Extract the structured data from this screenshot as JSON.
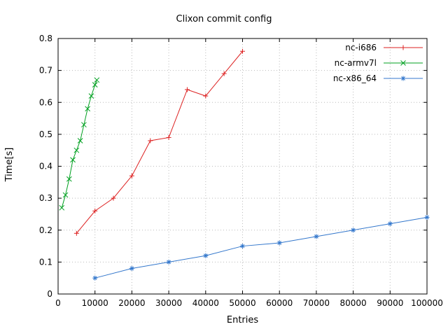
{
  "chart_data": {
    "type": "line",
    "title": "Clixon commit config",
    "xlabel": "Entries",
    "ylabel": "Time[s]",
    "xlim": [
      0,
      100000
    ],
    "ylim": [
      0,
      0.8
    ],
    "grid": true,
    "legend_position": "top-right-inside",
    "x_ticks": [
      0,
      10000,
      20000,
      30000,
      40000,
      50000,
      60000,
      70000,
      80000,
      90000,
      100000
    ],
    "x_tick_labels": [
      "0",
      "10000",
      "20000",
      "30000",
      "40000",
      "50000",
      "60000",
      "70000",
      "80000",
      "90000",
      "100000"
    ],
    "y_ticks": [
      0,
      0.1,
      0.2,
      0.3,
      0.4,
      0.5,
      0.6,
      0.7,
      0.8
    ],
    "y_tick_labels": [
      "0",
      "0.1",
      "0.2",
      "0.3",
      "0.4",
      "0.5",
      "0.6",
      "0.7",
      "0.8"
    ],
    "series": [
      {
        "name": "nc-i686",
        "color": "#dd2222",
        "marker": "plus",
        "x": [
          5000,
          10000,
          15000,
          20000,
          25000,
          30000,
          35000,
          40000,
          45000,
          50000
        ],
        "y": [
          0.19,
          0.26,
          0.3,
          0.37,
          0.48,
          0.49,
          0.64,
          0.62,
          0.69,
          0.76
        ]
      },
      {
        "name": "nc-armv7l",
        "color": "#00a020",
        "marker": "cross",
        "x": [
          1000,
          2000,
          3000,
          4000,
          5000,
          6000,
          7000,
          8000,
          9000,
          10000,
          10500
        ],
        "y": [
          0.27,
          0.31,
          0.36,
          0.42,
          0.45,
          0.48,
          0.53,
          0.58,
          0.62,
          0.655,
          0.67
        ]
      },
      {
        "name": "nc-x86_64",
        "color": "#3377cc",
        "marker": "asterisk",
        "x": [
          10000,
          20000,
          30000,
          40000,
          50000,
          60000,
          70000,
          80000,
          90000,
          100000
        ],
        "y": [
          0.05,
          0.08,
          0.1,
          0.12,
          0.15,
          0.16,
          0.18,
          0.2,
          0.22,
          0.24
        ]
      }
    ]
  }
}
